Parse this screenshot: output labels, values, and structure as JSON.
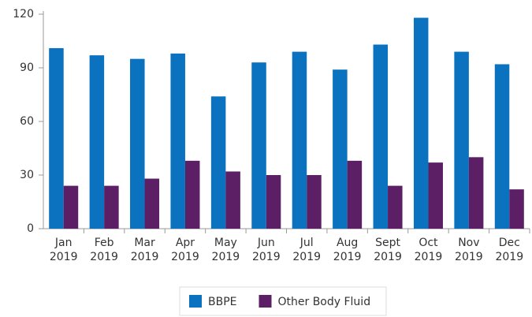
{
  "chart_data": {
    "type": "bar",
    "categories": [
      "Jan 2019",
      "Feb 2019",
      "Mar 2019",
      "Apr 2019",
      "May 2019",
      "Jun 2019",
      "Jul 2019",
      "Aug 2019",
      "Sept 2019",
      "Oct 2019",
      "Nov 2019",
      "Dec 2019"
    ],
    "series": [
      {
        "name": "BBPE",
        "color": "#0b72c0",
        "values": [
          101,
          97,
          95,
          98,
          74,
          93,
          99,
          89,
          103,
          118,
          99,
          92
        ]
      },
      {
        "name": "Other Body Fluid",
        "color": "#5c1f66",
        "values": [
          24,
          24,
          28,
          38,
          32,
          30,
          30,
          38,
          24,
          37,
          40,
          22
        ]
      }
    ],
    "ylim": [
      0,
      120
    ],
    "yticks": [
      0,
      30,
      60,
      90,
      120
    ],
    "legend": "bottom"
  }
}
